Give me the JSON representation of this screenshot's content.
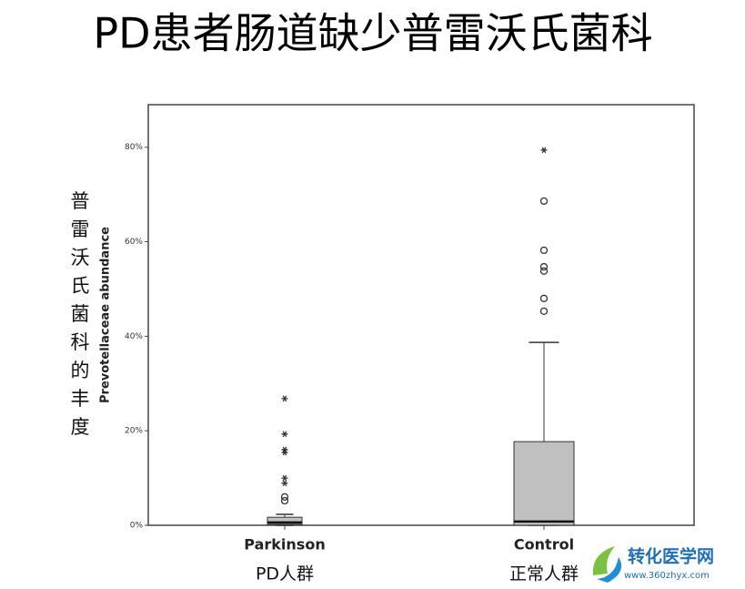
{
  "chart_data": {
    "type": "box",
    "title": "PD患者肠道缺少普雷沃氏菌科",
    "y_label": "Prevotellaceae abundance",
    "y_label_cn": "普雷沃氏菌科的丰度",
    "categories": [
      "Parkinson",
      "Control"
    ],
    "category_labels_cn": [
      "PD人群",
      "正常人群"
    ],
    "color": "#c0c0c0",
    "boxes": [
      {
        "min": 0,
        "q1": 0.2,
        "median": 0.6,
        "q3": 1.7,
        "max": 2.3,
        "outliers": [
          6.0,
          5.2
        ],
        "extremes": [
          26.8,
          19.3,
          16.0,
          15.4,
          10.0,
          8.9
        ]
      },
      {
        "min": 0,
        "q1": 0,
        "median": 0.8,
        "q3": 17.7,
        "max": 38.7,
        "outliers": [
          68.6,
          58.2,
          54.7,
          53.8,
          48.0,
          45.3
        ],
        "extremes": [
          79.4
        ]
      }
    ],
    "ylim": [
      0,
      89
    ],
    "yticks": [
      {
        "value": 0,
        "label": "0%"
      },
      {
        "value": 20,
        "label": "20%"
      },
      {
        "value": 40,
        "label": "40%"
      },
      {
        "value": 60,
        "label": "60%"
      },
      {
        "value": 80,
        "label": "80%"
      }
    ]
  },
  "watermark": {
    "name": "转化医学网",
    "url": "www.360zhyx.com"
  }
}
